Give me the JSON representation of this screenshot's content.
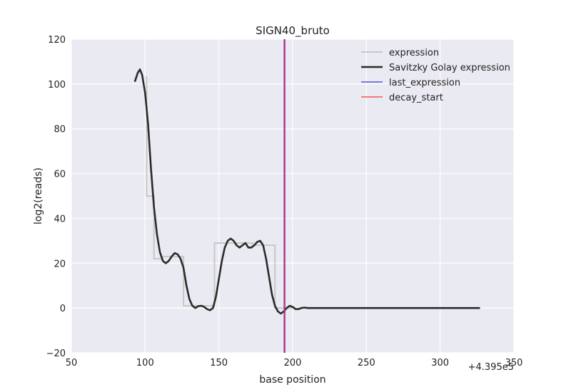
{
  "chart_data": {
    "type": "line",
    "title": "SIGN40_bruto",
    "xlabel": "base position",
    "ylabel": "log2(reads)",
    "x_offset_label": "+4.395e5",
    "xlim": [
      50,
      350
    ],
    "ylim": [
      -20,
      120
    ],
    "x_ticks": [
      50,
      100,
      150,
      200,
      250,
      300,
      350
    ],
    "y_ticks": [
      -20,
      0,
      20,
      40,
      60,
      80,
      100,
      120
    ],
    "x_tick_labels": [
      "50",
      "100",
      "150",
      "200",
      "250",
      "300",
      "350"
    ],
    "y_tick_labels": [
      "−20",
      "0",
      "20",
      "40",
      "60",
      "80",
      "100",
      "120"
    ],
    "grid": true,
    "legend_position": "top-right",
    "colors": {
      "plot_background": "#eaeaf2",
      "grid": "#ffffff",
      "expression": "#c8c8c8",
      "savitzky_golay": "#2b2b2b",
      "last_expression": "#7b7be8",
      "decay_start": "#f07b7b",
      "vertical_line": "#b0308a"
    },
    "series": [
      {
        "name": "expression",
        "style": "step",
        "points": [
          [
            100,
            103
          ],
          [
            101,
            103
          ],
          [
            101,
            50
          ],
          [
            106,
            50
          ],
          [
            106,
            22
          ],
          [
            112,
            22
          ],
          [
            112,
            23
          ],
          [
            126,
            23
          ],
          [
            126,
            1
          ],
          [
            147,
            1
          ],
          [
            147,
            29
          ],
          [
            173,
            29
          ],
          [
            173,
            28
          ],
          [
            188,
            28
          ],
          [
            188,
            0
          ],
          [
            200,
            0
          ]
        ]
      },
      {
        "name": "Savitzky Golay expression",
        "style": "line",
        "points": [
          [
            93,
            101
          ],
          [
            95,
            105
          ],
          [
            96.5,
            106.5
          ],
          [
            98,
            104
          ],
          [
            100,
            96
          ],
          [
            102,
            82
          ],
          [
            104,
            62
          ],
          [
            106,
            45
          ],
          [
            108,
            33
          ],
          [
            110,
            25
          ],
          [
            112,
            21
          ],
          [
            114,
            20
          ],
          [
            116,
            21
          ],
          [
            118,
            23
          ],
          [
            120,
            24.5
          ],
          [
            122,
            24
          ],
          [
            124,
            22
          ],
          [
            126,
            18
          ],
          [
            128,
            10
          ],
          [
            130,
            4
          ],
          [
            132,
            1
          ],
          [
            134,
            0
          ],
          [
            136,
            0.8
          ],
          [
            138,
            1
          ],
          [
            140,
            0.5
          ],
          [
            142,
            -0.5
          ],
          [
            144,
            -1
          ],
          [
            146,
            0
          ],
          [
            148,
            5
          ],
          [
            150,
            13
          ],
          [
            152,
            21
          ],
          [
            154,
            27
          ],
          [
            156,
            30
          ],
          [
            158,
            31
          ],
          [
            160,
            30
          ],
          [
            162,
            28
          ],
          [
            164,
            27
          ],
          [
            166,
            28
          ],
          [
            168,
            29
          ],
          [
            170,
            27
          ],
          [
            172,
            27
          ],
          [
            174,
            28
          ],
          [
            176,
            29.5
          ],
          [
            178,
            30
          ],
          [
            180,
            28
          ],
          [
            182,
            22
          ],
          [
            184,
            14
          ],
          [
            186,
            6
          ],
          [
            188,
            1
          ],
          [
            190,
            -1.5
          ],
          [
            192,
            -2.5
          ],
          [
            194,
            -1.5
          ],
          [
            196,
            0
          ],
          [
            198,
            1
          ],
          [
            200,
            0.5
          ],
          [
            202,
            -0.5
          ],
          [
            204,
            -0.5
          ],
          [
            206,
            0
          ],
          [
            208,
            0.2
          ],
          [
            210,
            0
          ],
          [
            220,
            0
          ],
          [
            240,
            0
          ],
          [
            260,
            0
          ],
          [
            280,
            0
          ],
          [
            300,
            0
          ],
          [
            320,
            0
          ],
          [
            327,
            0
          ]
        ]
      }
    ],
    "vertical_line_x": 194.5,
    "legend": [
      {
        "label": "expression",
        "color_key": "expression"
      },
      {
        "label": "Savitzky Golay expression",
        "color_key": "savitzky_golay"
      },
      {
        "label": "last_expression",
        "color_key": "last_expression"
      },
      {
        "label": "decay_start",
        "color_key": "decay_start"
      }
    ]
  }
}
